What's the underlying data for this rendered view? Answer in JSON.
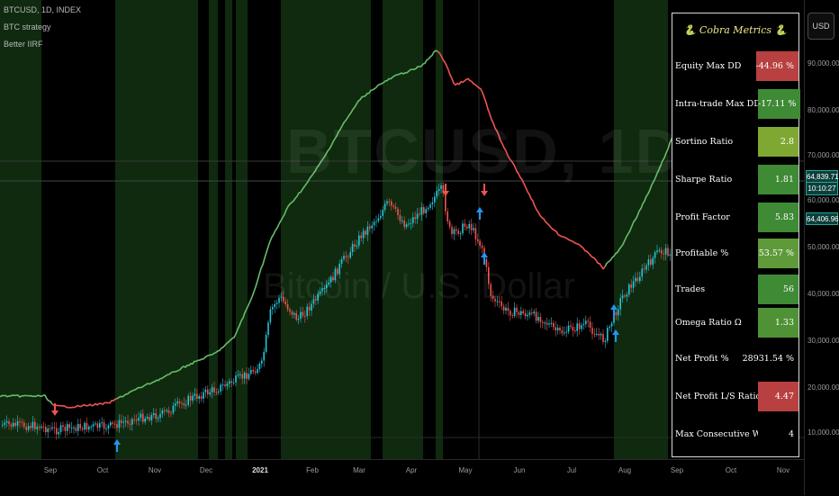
{
  "legend": {
    "symbol": "BTCUSD, 1D, INDEX",
    "strategy": "BTC strategy",
    "indicator": "Better IIRF"
  },
  "watermark": {
    "symbol": "BTCUSD, 1D",
    "description": "Bitcoin / U.S. Dollar"
  },
  "currency": "USD",
  "price_axis": {
    "ticks": [
      "90,000.00",
      "80,000.00",
      "70,000.00",
      "60,000.00",
      "50,000.00",
      "40,000.00",
      "30,000.00",
      "20,000.00",
      "10,000.00"
    ],
    "last_price": "64,839.71",
    "countdown": "10:10:27",
    "level_label": "64,406.96"
  },
  "time_axis": {
    "labels": [
      "Sep",
      "Oct",
      "Nov",
      "Dec",
      "2021",
      "Feb",
      "Mar",
      "Apr",
      "May",
      "Jun",
      "Jul",
      "Aug",
      "Sep",
      "Oct",
      "Nov"
    ]
  },
  "colors": {
    "equity_up": "#66bb6a",
    "equity_down": "#ef5350",
    "candle_up": "#26c6da",
    "candle_down": "#ef5350",
    "regime_bg": "#0f2a0f",
    "buy_arrow": "#2196f3",
    "sell_arrow": "#ef5350"
  },
  "metrics": {
    "title": "🐍 Cobra Metrics 🐍",
    "rows": [
      {
        "label": "Equity Max DD",
        "value": "-44.96 %",
        "color": "#b84040"
      },
      {
        "label": "Intra-trade Max DD",
        "value": "-17.11 %",
        "color": "#3f8a35"
      },
      {
        "label": "Sortino Ratio",
        "value": "2.8",
        "color": "#7fa832"
      },
      {
        "label": "Sharpe Ratio",
        "value": "1.81",
        "color": "#3f8a35"
      },
      {
        "label": "Profit Factor",
        "value": "5.83",
        "color": "#3f8a35"
      },
      {
        "label": "Profitable %",
        "value": "53.57 %",
        "color": "#5f9a3a"
      },
      {
        "label": "Trades",
        "value": "56",
        "color": "#3f8a35"
      },
      {
        "label": "Omega Ratio Ω",
        "value": "1.33",
        "color": "#4f9236"
      },
      {
        "label": "Net Profit %",
        "value": "28931.54 %",
        "color": "#000000"
      },
      {
        "label": "Net Profit L/S Ratio",
        "value": "4.47",
        "color": "#b84040"
      },
      {
        "label": "Max Consecutive Wins",
        "value": "4",
        "color": "#000000"
      }
    ]
  }
}
